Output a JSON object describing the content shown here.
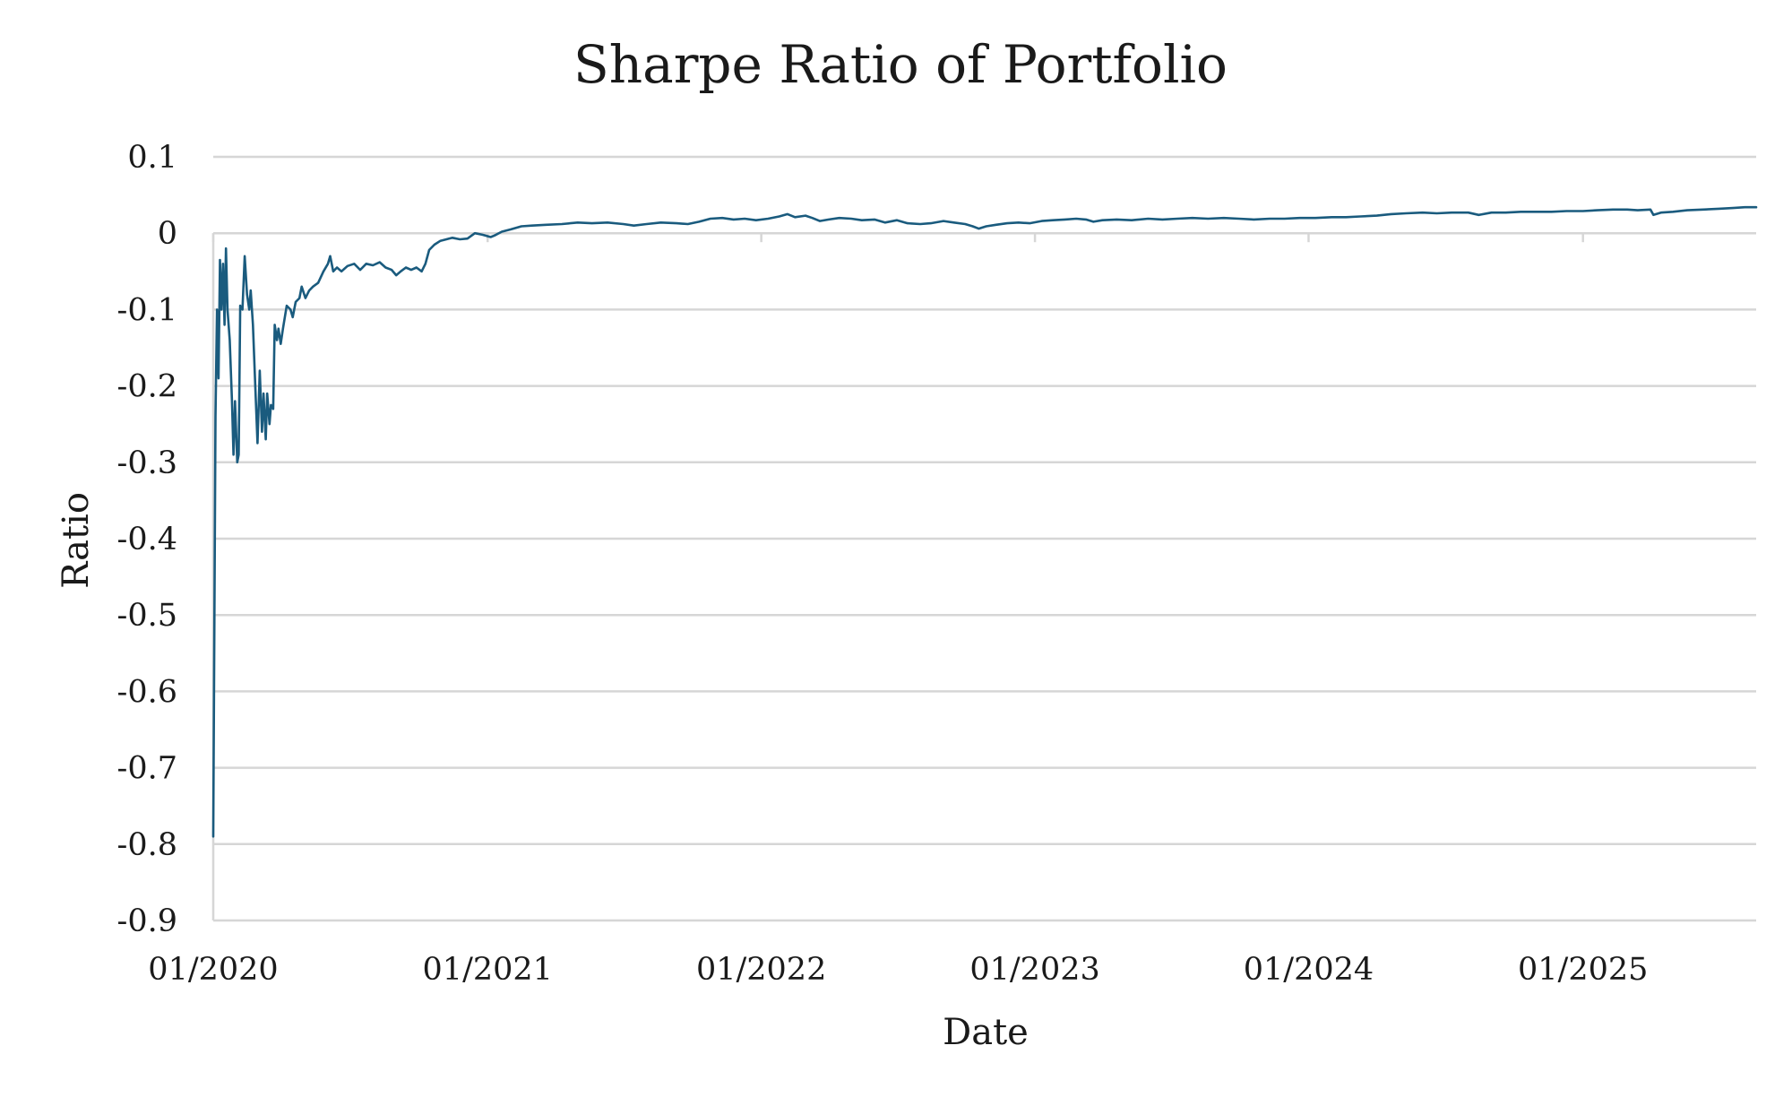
{
  "chart_data": {
    "type": "line",
    "title": "Sharpe Ratio of Portfolio",
    "xlabel": "Date",
    "ylabel": "Ratio",
    "x_range": [
      "2020-01-01",
      "2025-08-20"
    ],
    "ylim": [
      -0.9,
      0.1
    ],
    "x_ticks": [
      {
        "date": "2020-01-01",
        "label": "01/2020"
      },
      {
        "date": "2021-01-01",
        "label": "01/2021"
      },
      {
        "date": "2022-01-01",
        "label": "01/2022"
      },
      {
        "date": "2023-01-01",
        "label": "01/2023"
      },
      {
        "date": "2024-01-01",
        "label": "01/2024"
      },
      {
        "date": "2025-01-01",
        "label": "01/2025"
      }
    ],
    "y_ticks": [
      {
        "value": 0.1,
        "label": "0.1"
      },
      {
        "value": 0,
        "label": "0"
      },
      {
        "value": -0.1,
        "label": "-0.1"
      },
      {
        "value": -0.2,
        "label": "-0.2"
      },
      {
        "value": -0.3,
        "label": "-0.3"
      },
      {
        "value": -0.4,
        "label": "-0.4"
      },
      {
        "value": -0.5,
        "label": "-0.5"
      },
      {
        "value": -0.6,
        "label": "-0.6"
      },
      {
        "value": -0.7,
        "label": "-0.7"
      },
      {
        "value": -0.8,
        "label": "-0.8"
      },
      {
        "value": -0.9,
        "label": "-0.9"
      }
    ],
    "grid": true,
    "legend": "none",
    "series": [
      {
        "color": "#1a5b7e",
        "points": [
          [
            "2020-01-01",
            -0.79
          ],
          [
            "2020-01-04",
            -0.24
          ],
          [
            "2020-01-06",
            -0.1
          ],
          [
            "2020-01-08",
            -0.19
          ],
          [
            "2020-01-10",
            -0.035
          ],
          [
            "2020-01-12",
            -0.1
          ],
          [
            "2020-01-14",
            -0.04
          ],
          [
            "2020-01-16",
            -0.12
          ],
          [
            "2020-01-18",
            -0.02
          ],
          [
            "2020-01-20",
            -0.1
          ],
          [
            "2020-01-23",
            -0.14
          ],
          [
            "2020-01-26",
            -0.22
          ],
          [
            "2020-01-28",
            -0.29
          ],
          [
            "2020-01-30",
            -0.22
          ],
          [
            "2020-02-02",
            -0.3
          ],
          [
            "2020-02-04",
            -0.29
          ],
          [
            "2020-02-06",
            -0.095
          ],
          [
            "2020-02-09",
            -0.1
          ],
          [
            "2020-02-12",
            -0.03
          ],
          [
            "2020-02-15",
            -0.08
          ],
          [
            "2020-02-18",
            -0.1
          ],
          [
            "2020-02-20",
            -0.075
          ],
          [
            "2020-02-23",
            -0.12
          ],
          [
            "2020-02-26",
            -0.2
          ],
          [
            "2020-02-29",
            -0.275
          ],
          [
            "2020-03-03",
            -0.18
          ],
          [
            "2020-03-06",
            -0.26
          ],
          [
            "2020-03-08",
            -0.21
          ],
          [
            "2020-03-11",
            -0.27
          ],
          [
            "2020-03-13",
            -0.21
          ],
          [
            "2020-03-16",
            -0.25
          ],
          [
            "2020-03-18",
            -0.225
          ],
          [
            "2020-03-21",
            -0.23
          ],
          [
            "2020-03-23",
            -0.12
          ],
          [
            "2020-03-26",
            -0.14
          ],
          [
            "2020-03-28",
            -0.125
          ],
          [
            "2020-03-31",
            -0.145
          ],
          [
            "2020-04-03",
            -0.125
          ],
          [
            "2020-04-08",
            -0.095
          ],
          [
            "2020-04-13",
            -0.1
          ],
          [
            "2020-04-16",
            -0.11
          ],
          [
            "2020-04-20",
            -0.09
          ],
          [
            "2020-04-25",
            -0.085
          ],
          [
            "2020-04-28",
            -0.07
          ],
          [
            "2020-05-03",
            -0.085
          ],
          [
            "2020-05-08",
            -0.075
          ],
          [
            "2020-05-13",
            -0.07
          ],
          [
            "2020-05-20",
            -0.065
          ],
          [
            "2020-05-27",
            -0.05
          ],
          [
            "2020-06-02",
            -0.04
          ],
          [
            "2020-06-05",
            -0.03
          ],
          [
            "2020-06-09",
            -0.05
          ],
          [
            "2020-06-14",
            -0.045
          ],
          [
            "2020-06-20",
            -0.05
          ],
          [
            "2020-06-28",
            -0.043
          ],
          [
            "2020-07-07",
            -0.04
          ],
          [
            "2020-07-15",
            -0.048
          ],
          [
            "2020-07-23",
            -0.04
          ],
          [
            "2020-08-01",
            -0.042
          ],
          [
            "2020-08-10",
            -0.038
          ],
          [
            "2020-08-18",
            -0.045
          ],
          [
            "2020-08-26",
            -0.048
          ],
          [
            "2020-09-01",
            -0.055
          ],
          [
            "2020-09-07",
            -0.05
          ],
          [
            "2020-09-14",
            -0.045
          ],
          [
            "2020-09-21",
            -0.048
          ],
          [
            "2020-09-28",
            -0.045
          ],
          [
            "2020-10-05",
            -0.05
          ],
          [
            "2020-10-10",
            -0.04
          ],
          [
            "2020-10-15",
            -0.022
          ],
          [
            "2020-10-22",
            -0.015
          ],
          [
            "2020-10-30",
            -0.01
          ],
          [
            "2020-11-07",
            -0.008
          ],
          [
            "2020-11-15",
            -0.006
          ],
          [
            "2020-11-25",
            -0.008
          ],
          [
            "2020-12-05",
            -0.007
          ],
          [
            "2020-12-15",
            0.0
          ],
          [
            "2020-12-25",
            -0.002
          ],
          [
            "2021-01-05",
            -0.005
          ],
          [
            "2021-01-10",
            -0.003
          ],
          [
            "2021-01-20",
            0.002
          ],
          [
            "2021-02-01",
            0.005
          ],
          [
            "2021-02-15",
            0.009
          ],
          [
            "2021-03-01",
            0.01
          ],
          [
            "2021-03-20",
            0.011
          ],
          [
            "2021-04-10",
            0.012
          ],
          [
            "2021-05-01",
            0.014
          ],
          [
            "2021-05-20",
            0.013
          ],
          [
            "2021-06-10",
            0.014
          ],
          [
            "2021-07-01",
            0.012
          ],
          [
            "2021-07-15",
            0.01
          ],
          [
            "2021-08-01",
            0.012
          ],
          [
            "2021-08-20",
            0.014
          ],
          [
            "2021-09-10",
            0.013
          ],
          [
            "2021-09-25",
            0.012
          ],
          [
            "2021-10-10",
            0.015
          ],
          [
            "2021-10-25",
            0.019
          ],
          [
            "2021-11-10",
            0.02
          ],
          [
            "2021-11-25",
            0.018
          ],
          [
            "2021-12-10",
            0.019
          ],
          [
            "2021-12-25",
            0.017
          ],
          [
            "2022-01-10",
            0.019
          ],
          [
            "2022-01-25",
            0.022
          ],
          [
            "2022-02-05",
            0.025
          ],
          [
            "2022-02-15",
            0.021
          ],
          [
            "2022-03-01",
            0.023
          ],
          [
            "2022-03-10",
            0.02
          ],
          [
            "2022-03-20",
            0.016
          ],
          [
            "2022-04-01",
            0.018
          ],
          [
            "2022-04-15",
            0.02
          ],
          [
            "2022-05-01",
            0.019
          ],
          [
            "2022-05-15",
            0.017
          ],
          [
            "2022-06-01",
            0.018
          ],
          [
            "2022-06-15",
            0.014
          ],
          [
            "2022-07-01",
            0.017
          ],
          [
            "2022-07-15",
            0.013
          ],
          [
            "2022-08-01",
            0.012
          ],
          [
            "2022-08-15",
            0.013
          ],
          [
            "2022-09-01",
            0.016
          ],
          [
            "2022-09-15",
            0.014
          ],
          [
            "2022-09-30",
            0.012
          ],
          [
            "2022-10-10",
            0.009
          ],
          [
            "2022-10-18",
            0.006
          ],
          [
            "2022-10-28",
            0.009
          ],
          [
            "2022-11-10",
            0.011
          ],
          [
            "2022-11-25",
            0.013
          ],
          [
            "2022-12-10",
            0.014
          ],
          [
            "2022-12-25",
            0.013
          ],
          [
            "2023-01-10",
            0.016
          ],
          [
            "2023-01-25",
            0.017
          ],
          [
            "2023-02-10",
            0.018
          ],
          [
            "2023-02-25",
            0.019
          ],
          [
            "2023-03-10",
            0.018
          ],
          [
            "2023-03-20",
            0.015
          ],
          [
            "2023-04-01",
            0.017
          ],
          [
            "2023-04-20",
            0.018
          ],
          [
            "2023-05-10",
            0.017
          ],
          [
            "2023-06-01",
            0.019
          ],
          [
            "2023-06-20",
            0.018
          ],
          [
            "2023-07-10",
            0.019
          ],
          [
            "2023-07-30",
            0.02
          ],
          [
            "2023-08-20",
            0.019
          ],
          [
            "2023-09-10",
            0.02
          ],
          [
            "2023-09-30",
            0.019
          ],
          [
            "2023-10-20",
            0.018
          ],
          [
            "2023-11-10",
            0.019
          ],
          [
            "2023-11-30",
            0.019
          ],
          [
            "2023-12-20",
            0.02
          ],
          [
            "2024-01-10",
            0.02
          ],
          [
            "2024-02-01",
            0.021
          ],
          [
            "2024-02-20",
            0.021
          ],
          [
            "2024-03-10",
            0.022
          ],
          [
            "2024-04-01",
            0.023
          ],
          [
            "2024-04-20",
            0.025
          ],
          [
            "2024-05-10",
            0.026
          ],
          [
            "2024-06-01",
            0.027
          ],
          [
            "2024-06-20",
            0.026
          ],
          [
            "2024-07-10",
            0.027
          ],
          [
            "2024-08-01",
            0.027
          ],
          [
            "2024-08-15",
            0.024
          ],
          [
            "2024-09-01",
            0.027
          ],
          [
            "2024-09-20",
            0.027
          ],
          [
            "2024-10-10",
            0.028
          ],
          [
            "2024-11-01",
            0.028
          ],
          [
            "2024-11-20",
            0.028
          ],
          [
            "2024-12-10",
            0.029
          ],
          [
            "2025-01-01",
            0.029
          ],
          [
            "2025-01-20",
            0.03
          ],
          [
            "2025-02-10",
            0.031
          ],
          [
            "2025-03-01",
            0.031
          ],
          [
            "2025-03-15",
            0.03
          ],
          [
            "2025-04-01",
            0.031
          ],
          [
            "2025-04-05",
            0.024
          ],
          [
            "2025-04-15",
            0.027
          ],
          [
            "2025-05-01",
            0.028
          ],
          [
            "2025-05-20",
            0.03
          ],
          [
            "2025-06-10",
            0.031
          ],
          [
            "2025-07-01",
            0.032
          ],
          [
            "2025-07-20",
            0.033
          ],
          [
            "2025-08-05",
            0.034
          ],
          [
            "2025-08-20",
            0.034
          ]
        ]
      }
    ]
  }
}
